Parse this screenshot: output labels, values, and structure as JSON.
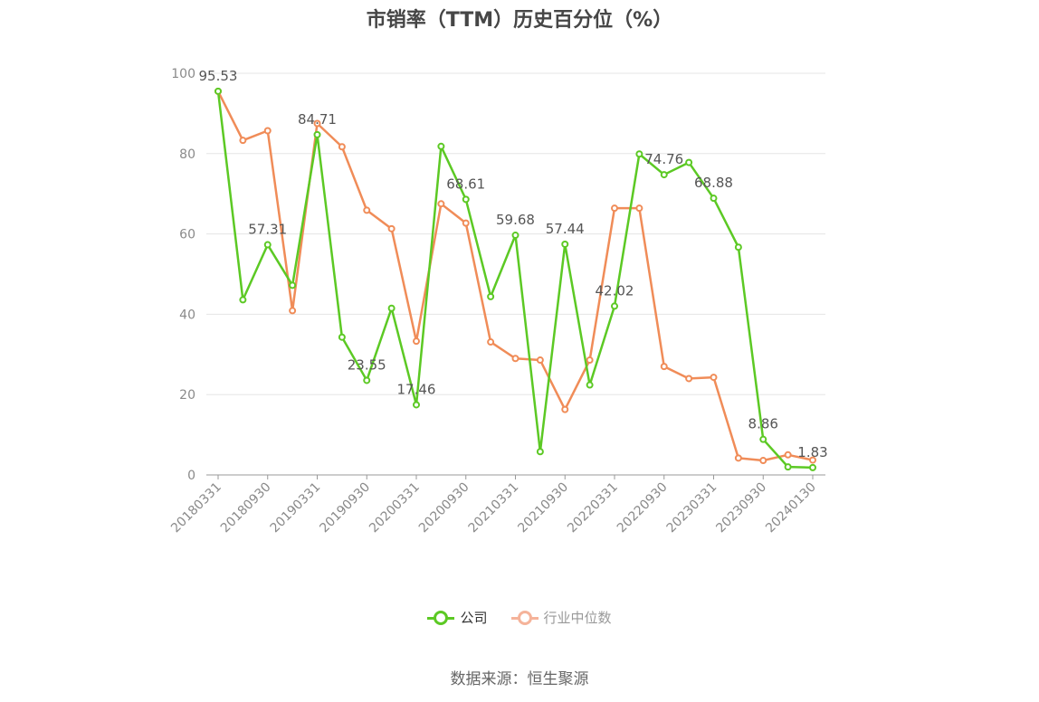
{
  "title": "市销率（TTM）历史百分位（%）",
  "source": "数据来源：恒生聚源",
  "colors": {
    "company": "#5cc924",
    "industry": "#f08c58",
    "grid": "#e5e5e5",
    "axis": "#999999"
  },
  "legend": {
    "company": "公司",
    "industry": "行业中位数"
  },
  "chart_data": {
    "type": "line",
    "title": "市销率（TTM）历史百分位（%）",
    "ylim": [
      0,
      100
    ],
    "yticks": [
      0,
      20,
      40,
      60,
      80,
      100
    ],
    "grid": true,
    "legend_position": "bottom",
    "x": [
      "20180331",
      "20180630",
      "20180930",
      "20181231",
      "20190331",
      "20190630",
      "20190930",
      "20191231",
      "20200331",
      "20200630",
      "20200930",
      "20201231",
      "20210331",
      "20210630",
      "20210930",
      "20211231",
      "20220331",
      "20220630",
      "20220930",
      "20221231",
      "20230331",
      "20230630",
      "20230930",
      "20231231",
      "20240130"
    ],
    "tick_labels": [
      "20180331",
      "20180930",
      "20190331",
      "20190930",
      "20200331",
      "20200930",
      "20210331",
      "20210930",
      "20220331",
      "20220930",
      "20230331",
      "20230930",
      "20240130"
    ],
    "series": [
      {
        "name": "公司",
        "values": [
          95.53,
          43.6,
          57.31,
          47.2,
          84.71,
          34.3,
          23.55,
          41.5,
          17.46,
          81.8,
          68.61,
          44.4,
          59.68,
          5.8,
          57.44,
          22.4,
          42.02,
          79.9,
          74.76,
          77.8,
          68.88,
          56.7,
          8.86,
          2.0,
          1.83
        ]
      },
      {
        "name": "行业中位数",
        "values": [
          95.5,
          83.3,
          85.7,
          40.9,
          87.5,
          81.7,
          65.9,
          61.3,
          33.3,
          67.5,
          62.7,
          33.1,
          29.0,
          28.6,
          16.3,
          28.6,
          66.4,
          66.4,
          27.0,
          24.0,
          24.3,
          4.2,
          3.6,
          5.0,
          3.7
        ]
      }
    ],
    "data_labels": [
      "95.53",
      "57.31",
      "84.71",
      "23.55",
      "17.46",
      "68.61",
      "59.68",
      "57.44",
      "42.02",
      "74.76",
      "68.88",
      "8.86",
      "1.83"
    ],
    "data_label_indices": [
      0,
      2,
      4,
      6,
      8,
      10,
      12,
      14,
      16,
      18,
      20,
      22,
      24
    ]
  }
}
